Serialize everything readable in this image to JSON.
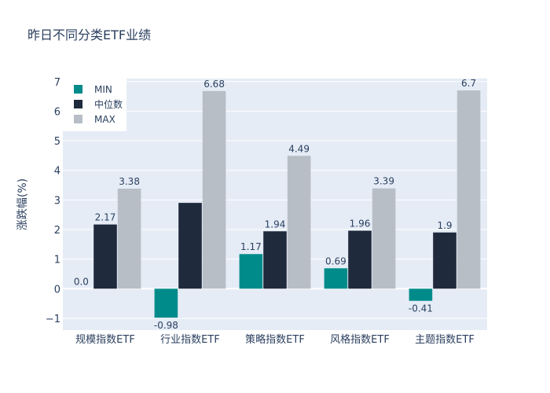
{
  "chart_data": {
    "type": "bar",
    "title": "昨日不同分类ETF业绩",
    "xlabel": "",
    "ylabel": "涨跌幅(%)",
    "ylim": [
      -1.4,
      7.1
    ],
    "yticks": [
      -1,
      0,
      1,
      2,
      3,
      4,
      5,
      6,
      7
    ],
    "ytick_labels": [
      "−1",
      "0",
      "1",
      "2",
      "3",
      "4",
      "5",
      "6",
      "7"
    ],
    "grid": true,
    "legend_position": "top-left",
    "categories": [
      "规模指数ETF",
      "行业指数ETF",
      "策略指数ETF",
      "风格指数ETF",
      "主题指数ETF"
    ],
    "series": [
      {
        "name": "MIN",
        "color": "#008b8b",
        "values": [
          0.0,
          -0.98,
          1.17,
          0.69,
          -0.41
        ],
        "labels": [
          "0.0",
          "-0.98",
          "1.17",
          "0.69",
          "-0.41"
        ]
      },
      {
        "name": "中位数",
        "color": "#1f2a3c",
        "values": [
          2.17,
          2.9,
          1.94,
          1.96,
          1.9
        ],
        "labels": [
          "2.17",
          "",
          "1.94",
          "1.96",
          "1.9"
        ]
      },
      {
        "name": "MAX",
        "color": "#b8bec6",
        "values": [
          3.38,
          6.68,
          4.49,
          3.39,
          6.7
        ],
        "labels": [
          "3.38",
          "6.68",
          "4.49",
          "3.39",
          "6.7"
        ]
      }
    ]
  }
}
